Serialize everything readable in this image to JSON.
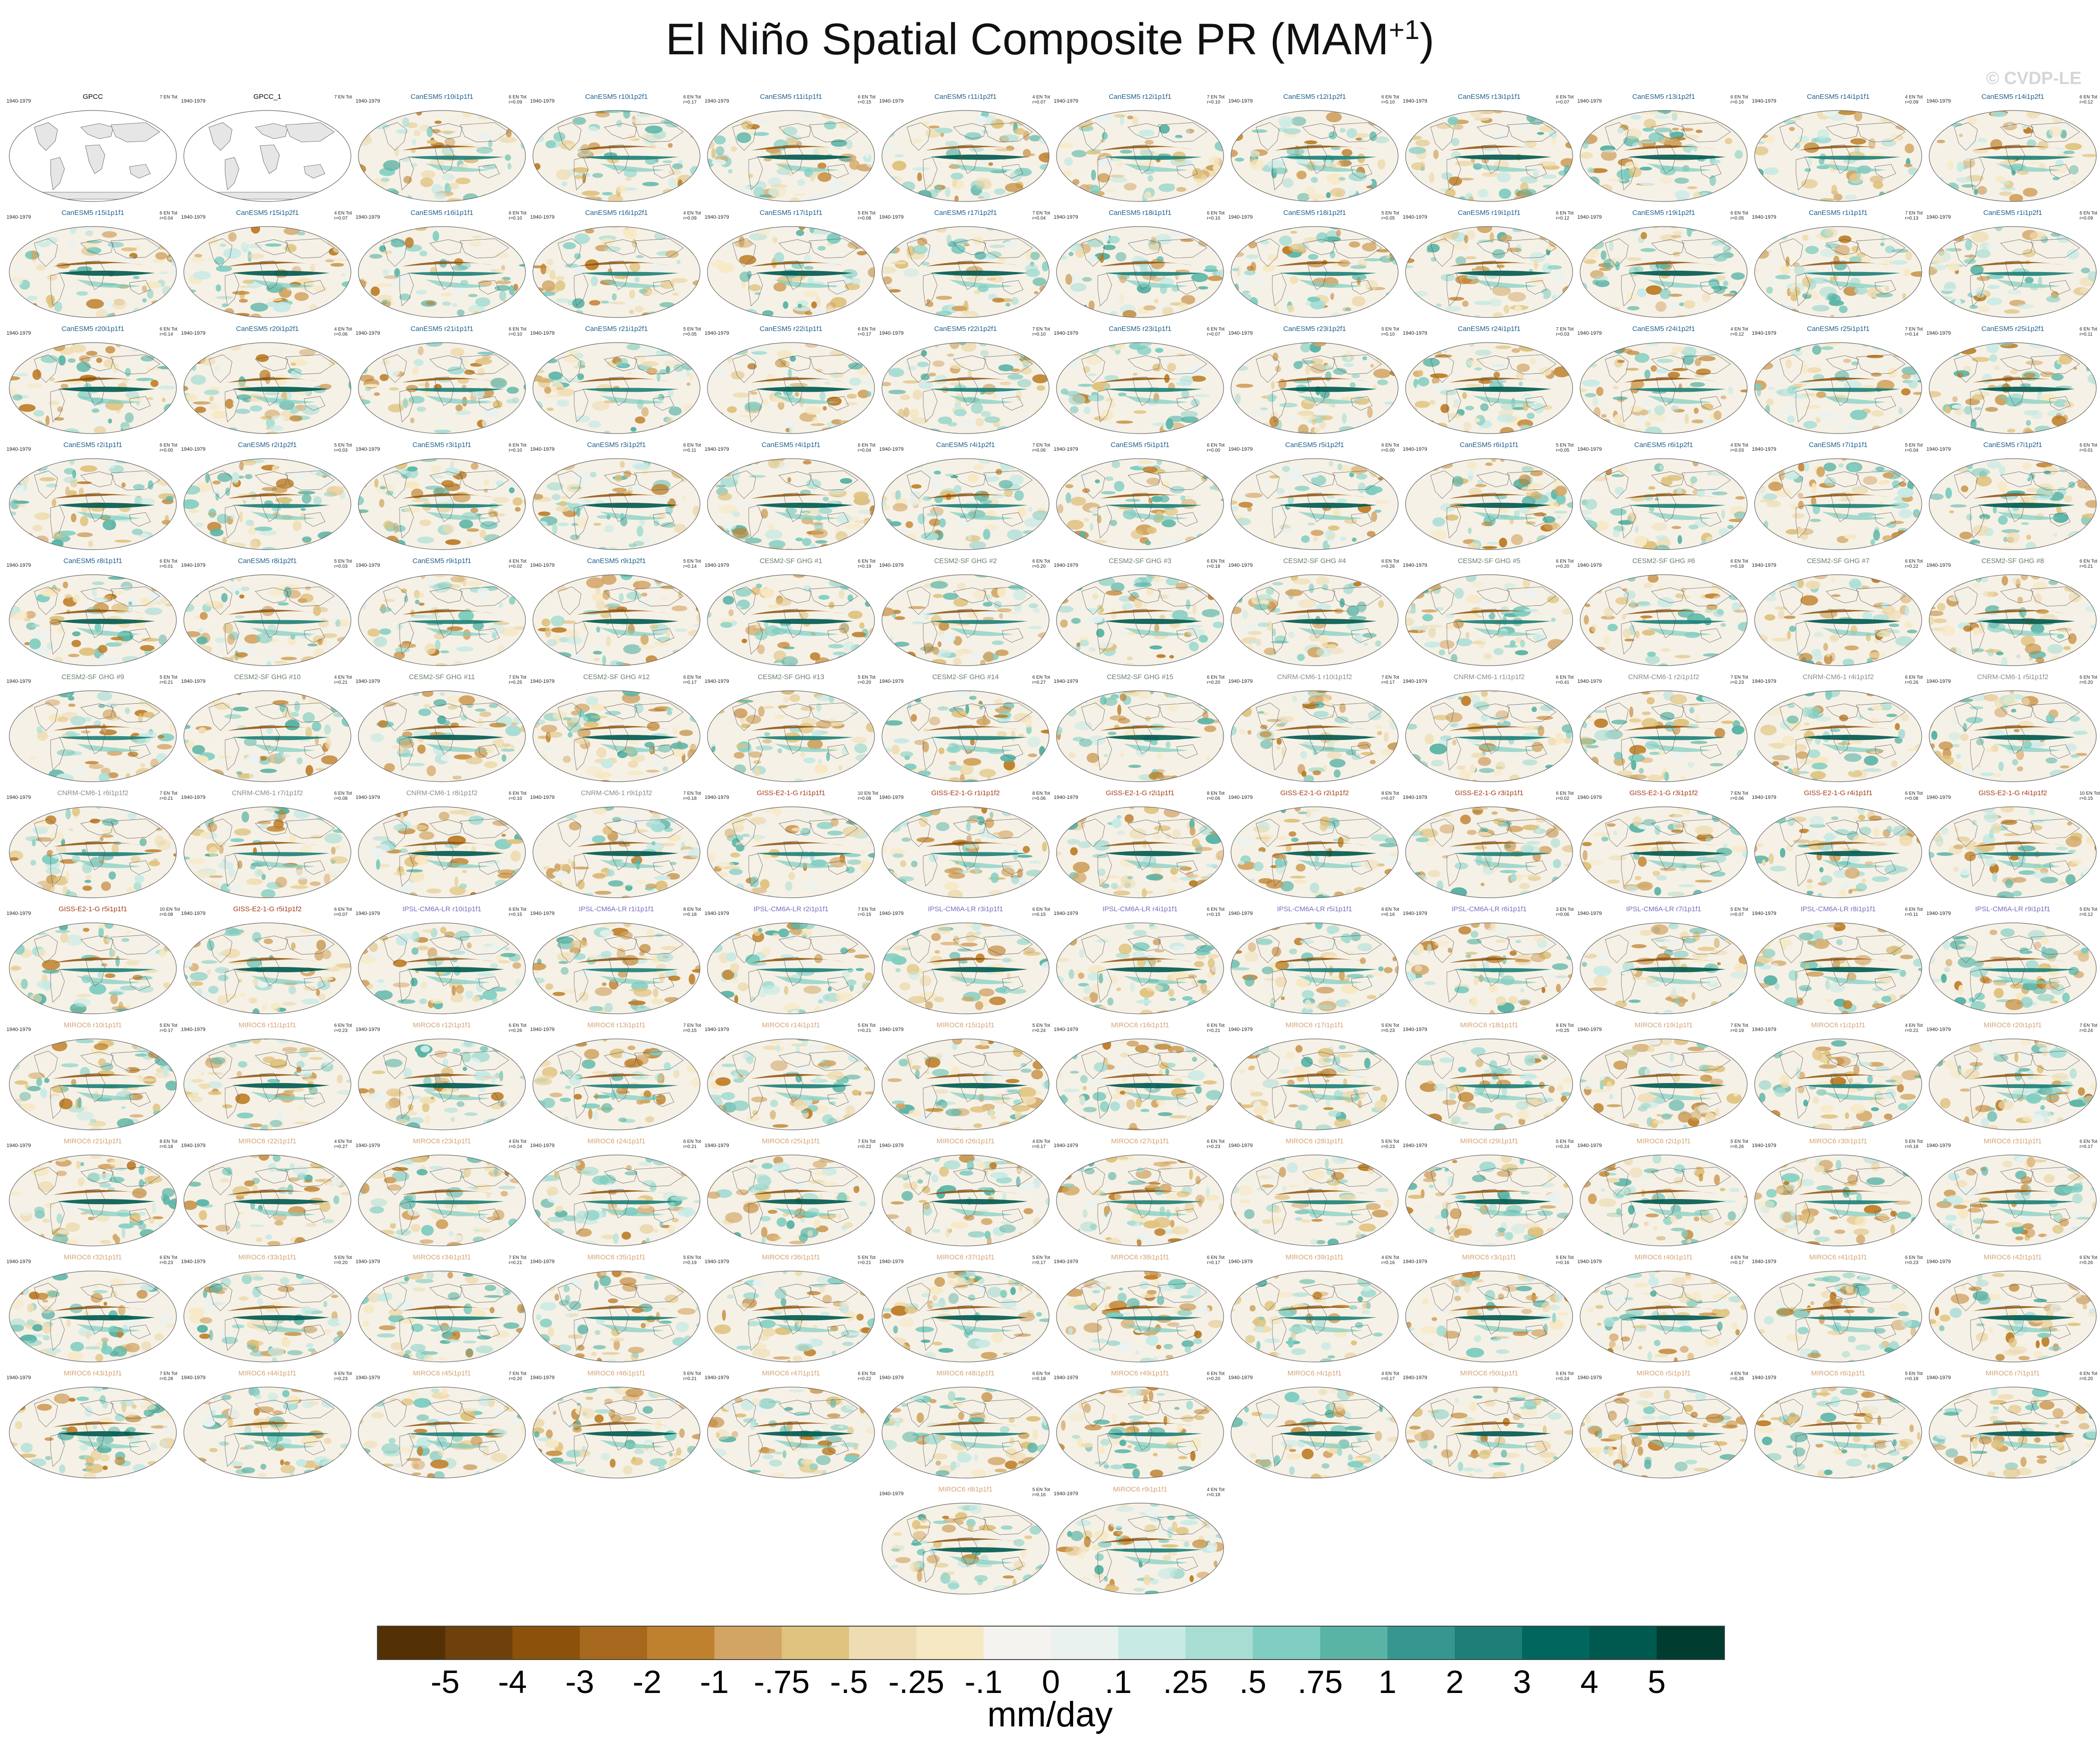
{
  "title": "El Niño Spatial Composite PR (MAM",
  "title_sup": "+1",
  "title_end": ")",
  "watermark": "© CVDP-LE",
  "period": "1940-1979",
  "stat_prefix": "# EN",
  "colors": {
    "land_obs": "#e6e6e6",
    "ocean_obs": "#ffffff",
    "canesm5": "#1f5f8b",
    "cesm2": "#6a7f6a",
    "cnrm": "#8c8c8c",
    "giss": "#a33a1a",
    "ipsl": "#7b6bbf",
    "miroc6": "#d4a373",
    "obs": "#000000"
  },
  "panels": [
    {
      "t": "GPCC",
      "v": "7 EN Tot",
      "obs": true
    },
    {
      "t": "GPCC_1",
      "v": "7 EN Tot",
      "obs": true
    },
    {
      "t": "CanESM5 r10i1p1f1",
      "v": "6 EN Tot\nr=0.09"
    },
    {
      "t": "CanESM5 r10i1p2f1",
      "v": "6 EN Tot\nr=0.17"
    },
    {
      "t": "CanESM5 r11i1p1f1",
      "v": "6 EN Tot\nr=0.15"
    },
    {
      "t": "CanESM5 r11i1p2f1",
      "v": "4 EN Tot\nr=0.07"
    },
    {
      "t": "CanESM5 r12i1p1f1",
      "v": "7 EN Tot\nr=0.10"
    },
    {
      "t": "CanESM5 r12i1p2f1",
      "v": "6 EN Tot\nr=0.10"
    },
    {
      "t": "CanESM5 r13i1p1f1",
      "v": "6 EN Tot\nr=0.07"
    },
    {
      "t": "CanESM5 r13i1p2f1",
      "v": "6 EN Tot\nr=0.16"
    },
    {
      "t": "CanESM5 r14i1p1f1",
      "v": "4 EN Tot\nr=0.09"
    },
    {
      "t": "CanESM5 r14i1p2f1",
      "v": "6 EN Tot\nr=0.12"
    },
    {
      "t": "CanESM5 r15i1p1f1",
      "v": "6 EN Tot\nr=0.04"
    },
    {
      "t": "CanESM5 r15i1p2f1",
      "v": "4 EN Tot\nr=0.07"
    },
    {
      "t": "CanESM5 r16i1p1f1",
      "v": "6 EN Tot\nr=0.10"
    },
    {
      "t": "CanESM5 r16i1p2f1",
      "v": "4 EN Tot\nr=0.09"
    },
    {
      "t": "CanESM5 r17i1p1f1",
      "v": "5 EN Tot\nr=0.08"
    },
    {
      "t": "CanESM5 r17i1p2f1",
      "v": "7 EN Tot\nr=0.04"
    },
    {
      "t": "CanESM5 r18i1p1f1",
      "v": "6 EN Tot\nr=0.10"
    },
    {
      "t": "CanESM5 r18i1p2f1",
      "v": "5 EN Tot\nr=0.05"
    },
    {
      "t": "CanESM5 r19i1p1f1",
      "v": "6 EN Tot\nr=0.12"
    },
    {
      "t": "CanESM5 r19i1p2f1",
      "v": "6 EN Tot\nr=0.05"
    },
    {
      "t": "CanESM5 r1i1p1f1",
      "v": "7 EN Tot\nr=0.13"
    },
    {
      "t": "CanESM5 r1i1p2f1",
      "v": "6 EN Tot\nr=0.09"
    },
    {
      "t": "CanESM5 r20i1p1f1",
      "v": "6 EN Tot\nr=0.14"
    },
    {
      "t": "CanESM5 r20i1p2f1",
      "v": "4 EN Tot\nr=0.06"
    },
    {
      "t": "CanESM5 r21i1p1f1",
      "v": "6 EN Tot\nr=0.10"
    },
    {
      "t": "CanESM5 r21i1p2f1",
      "v": "5 EN Tot\nr=0.05"
    },
    {
      "t": "CanESM5 r22i1p1f1",
      "v": "6 EN Tot\nr=0.17"
    },
    {
      "t": "CanESM5 r22i1p2f1",
      "v": "7 EN Tot\nr=0.10"
    },
    {
      "t": "CanESM5 r23i1p1f1",
      "v": "6 EN Tot\nr=0.07"
    },
    {
      "t": "CanESM5 r23i1p2f1",
      "v": "5 EN Tot\nr=0.10"
    },
    {
      "t": "CanESM5 r24i1p1f1",
      "v": "7 EN Tot\nr=0.03"
    },
    {
      "t": "CanESM5 r24i1p2f1",
      "v": "4 EN Tot\nr=0.12"
    },
    {
      "t": "CanESM5 r25i1p1f1",
      "v": "7 EN Tot\nr=0.14"
    },
    {
      "t": "CanESM5 r25i1p2f1",
      "v": "6 EN Tot\nr=0.11"
    },
    {
      "t": "CanESM5 r2i1p1f1",
      "v": "6 EN Tot\nr=0.00"
    },
    {
      "t": "CanESM5 r2i1p2f1",
      "v": "5 EN Tot\nr=0.03"
    },
    {
      "t": "CanESM5 r3i1p1f1",
      "v": "6 EN Tot\nr=0.10"
    },
    {
      "t": "CanESM5 r3i1p2f1",
      "v": "6 EN Tot\nr=0.11"
    },
    {
      "t": "CanESM5 r4i1p1f1",
      "v": "6 EN Tot\nr=0.04"
    },
    {
      "t": "CanESM5 r4i1p2f1",
      "v": "7 EN Tot\nr=0.06"
    },
    {
      "t": "CanESM5 r5i1p1f1",
      "v": "6 EN Tot\nr=0.00"
    },
    {
      "t": "CanESM5 r5i1p2f1",
      "v": "6 EN Tot\nr=0.00"
    },
    {
      "t": "CanESM5 r6i1p1f1",
      "v": "5 EN Tot\nr=0.05"
    },
    {
      "t": "CanESM5 r6i1p2f1",
      "v": "4 EN Tot\nr=0.03"
    },
    {
      "t": "CanESM5 r7i1p1f1",
      "v": "5 EN Tot\nr=0.04"
    },
    {
      "t": "CanESM5 r7i1p2f1",
      "v": "6 EN Tot\nr=0.01"
    },
    {
      "t": "CanESM5 r8i1p1f1",
      "v": "6 EN Tot\nr=0.01"
    },
    {
      "t": "CanESM5 r8i1p2f1",
      "v": "5 EN Tot\nr=0.03"
    },
    {
      "t": "CanESM5 r9i1p1f1",
      "v": "4 EN Tot\nr=0.02"
    },
    {
      "t": "CanESM5 r9i1p2f1",
      "v": "5 EN Tot\nr=0.14"
    },
    {
      "t": "CESM2-SF GHG #1",
      "v": "6 EN Tot\nr=0.19"
    },
    {
      "t": "CESM2-SF GHG #2",
      "v": "6 EN Tot\nr=0.20"
    },
    {
      "t": "CESM2-SF GHG #3",
      "v": "6 EN Tot\nr=0.18"
    },
    {
      "t": "CESM2-SF GHG #4",
      "v": "6 EN Tot\nr=0.26"
    },
    {
      "t": "CESM2-SF GHG #5",
      "v": "6 EN Tot\nr=0.20"
    },
    {
      "t": "CESM2-SF GHG #6",
      "v": "6 EN Tot\nr=0.18"
    },
    {
      "t": "CESM2-SF GHG #7",
      "v": "6 EN Tot\nr=0.22"
    },
    {
      "t": "CESM2-SF GHG #8",
      "v": "6 EN Tot\nr=0.21"
    },
    {
      "t": "CESM2-SF GHG #9",
      "v": "5 EN Tot\nr=0.21"
    },
    {
      "t": "CESM2-SF GHG #10",
      "v": "4 EN Tot\nr=0.21"
    },
    {
      "t": "CESM2-SF GHG #11",
      "v": "7 EN Tot\nr=0.25"
    },
    {
      "t": "CESM2-SF GHG #12",
      "v": "6 EN Tot\nr=0.17"
    },
    {
      "t": "CESM2-SF GHG #13",
      "v": "5 EN Tot\nr=0.20"
    },
    {
      "t": "CESM2-SF GHG #14",
      "v": "6 EN Tot\nr=0.27"
    },
    {
      "t": "CESM2-SF GHG #15",
      "v": "6 EN Tot\nr=0.20"
    },
    {
      "t": "CNRM-CM6-1 r10i1p1f2",
      "v": "7 EN Tot\nr=0.17"
    },
    {
      "t": "CNRM-CM6-1 r1i1p1f2",
      "v": "6 EN Tot\nr=0.41"
    },
    {
      "t": "CNRM-CM6-1 r2i1p1f2",
      "v": "7 EN Tot\nr=0.23"
    },
    {
      "t": "CNRM-CM6-1 r4i1p1f2",
      "v": "6 EN Tot\nr=0.26"
    },
    {
      "t": "CNRM-CM6-1 r5i1p1f2",
      "v": "6 EN Tot\nr=0.20"
    },
    {
      "t": "CNRM-CM6-1 r6i1p1f2",
      "v": "7 EN Tot\nr=0.21"
    },
    {
      "t": "CNRM-CM6-1 r7i1p1f2",
      "v": "6 EN Tot\nr=0.08"
    },
    {
      "t": "CNRM-CM6-1 r8i1p1f2",
      "v": "6 EN Tot\nr=0.10"
    },
    {
      "t": "CNRM-CM6-1 r9i1p1f2",
      "v": "7 EN Tot\nr=0.18"
    },
    {
      "t": "GISS-E2-1-G r1i1p1f1",
      "v": "10 EN Tot\nr=0.08"
    },
    {
      "t": "GISS-E2-1-G r1i1p1f2",
      "v": "8 EN Tot\nr=0.06"
    },
    {
      "t": "GISS-E2-1-G r2i1p1f1",
      "v": "8 EN Tot\nr=0.06"
    },
    {
      "t": "GISS-E2-1-G r2i1p1f2",
      "v": "8 EN Tot\nr=0.07"
    },
    {
      "t": "GISS-E2-1-G r3i1p1f1",
      "v": "6 EN Tot\nr=0.02"
    },
    {
      "t": "GISS-E2-1-G r3i1p1f2",
      "v": "7 EN Tot\nr=0.06"
    },
    {
      "t": "GISS-E2-1-G r4i1p1f1",
      "v": "6 EN Tot\nr=0.08"
    },
    {
      "t": "GISS-E2-1-G r4i1p1f2",
      "v": "10 EN Tot\nr=0.15"
    },
    {
      "t": "GISS-E2-1-G r5i1p1f1",
      "v": "10 EN Tot\nr=0.08"
    },
    {
      "t": "GISS-E2-1-G r5i1p1f2",
      "v": "6 EN Tot\nr=0.07"
    },
    {
      "t": "IPSL-CM6A-LR r10i1p1f1",
      "v": "6 EN Tot\nr=0.15"
    },
    {
      "t": "IPSL-CM6A-LR r1i1p1f1",
      "v": "8 EN Tot\nr=0.18"
    },
    {
      "t": "IPSL-CM6A-LR r2i1p1f1",
      "v": "7 EN Tot\nr=0.15"
    },
    {
      "t": "IPSL-CM6A-LR r3i1p1f1",
      "v": "6 EN Tot\nr=0.15"
    },
    {
      "t": "IPSL-CM6A-LR r4i1p1f1",
      "v": "6 EN Tot\nr=0.15"
    },
    {
      "t": "IPSL-CM6A-LR r5i1p1f1",
      "v": "6 EN Tot\nr=0.16"
    },
    {
      "t": "IPSL-CM6A-LR r6i1p1f1",
      "v": "3 EN Tot\nr=0.06"
    },
    {
      "t": "IPSL-CM6A-LR r7i1p1f1",
      "v": "5 EN Tot\nr=0.07"
    },
    {
      "t": "IPSL-CM6A-LR r8i1p1f1",
      "v": "6 EN Tot\nr=0.11"
    },
    {
      "t": "IPSL-CM6A-LR r9i1p1f1",
      "v": "5 EN Tot\nr=0.12"
    },
    {
      "t": "MIROC6 r10i1p1f1",
      "v": "5 EN Tot\nr=0.17"
    },
    {
      "t": "MIROC6 r11i1p1f1",
      "v": "6 EN Tot\nr=0.23"
    },
    {
      "t": "MIROC6 r12i1p1f1",
      "v": "6 EN Tot\nr=0.26"
    },
    {
      "t": "MIROC6 r13i1p1f1",
      "v": "7 EN Tot\nr=0.15"
    },
    {
      "t": "MIROC6 r14i1p1f1",
      "v": "5 EN Tot\nr=0.21"
    },
    {
      "t": "MIROC6 r15i1p1f1",
      "v": "5 EN Tot\nr=0.24"
    },
    {
      "t": "MIROC6 r16i1p1f1",
      "v": "6 EN Tot\nr=0.21"
    },
    {
      "t": "MIROC6 r17i1p1f1",
      "v": "5 EN Tot\nr=0.23"
    },
    {
      "t": "MIROC6 r18i1p1f1",
      "v": "8 EN Tot\nr=0.25"
    },
    {
      "t": "MIROC6 r19i1p1f1",
      "v": "7 EN Tot\nr=0.19"
    },
    {
      "t": "MIROC6 r1i1p1f1",
      "v": "4 EN Tot\nr=0.21"
    },
    {
      "t": "MIROC6 r20i1p1f1",
      "v": "7 EN Tot\nr=0.24"
    },
    {
      "t": "MIROC6 r21i1p1f1",
      "v": "8 EN Tot\nr=0.18"
    },
    {
      "t": "MIROC6 r22i1p1f1",
      "v": "4 EN Tot\nr=0.27"
    },
    {
      "t": "MIROC6 r23i1p1f1",
      "v": "4 EN Tot\nr=0.24"
    },
    {
      "t": "MIROC6 r24i1p1f1",
      "v": "6 EN Tot\nr=0.21"
    },
    {
      "t": "MIROC6 r25i1p1f1",
      "v": "7 EN Tot\nr=0.22"
    },
    {
      "t": "MIROC6 r26i1p1f1",
      "v": "4 EN Tot\nr=0.17"
    },
    {
      "t": "MIROC6 r27i1p1f1",
      "v": "6 EN Tot\nr=0.23"
    },
    {
      "t": "MIROC6 r28i1p1f1",
      "v": "5 EN Tot\nr=0.23"
    },
    {
      "t": "MIROC6 r29i1p1f1",
      "v": "5 EN Tot\nr=0.24"
    },
    {
      "t": "MIROC6 r2i1p1f1",
      "v": "5 EN Tot\nr=0.26"
    },
    {
      "t": "MIROC6 r30i1p1f1",
      "v": "5 EN Tot\nr=0.18"
    },
    {
      "t": "MIROC6 r31i1p1f1",
      "v": "6 EN Tot\nr=0.17"
    },
    {
      "t": "MIROC6 r32i1p1f1",
      "v": "6 EN Tot\nr=0.23"
    },
    {
      "t": "MIROC6 r33i1p1f1",
      "v": "5 EN Tot\nr=0.20"
    },
    {
      "t": "MIROC6 r34i1p1f1",
      "v": "7 EN Tot\nr=0.21"
    },
    {
      "t": "MIROC6 r35i1p1f1",
      "v": "5 EN Tot\nr=0.19"
    },
    {
      "t": "MIROC6 r36i1p1f1",
      "v": "5 EN Tot\nr=0.21"
    },
    {
      "t": "MIROC6 r37i1p1f1",
      "v": "5 EN Tot\nr=0.17"
    },
    {
      "t": "MIROC6 r38i1p1f1",
      "v": "6 EN Tot\nr=0.17"
    },
    {
      "t": "MIROC6 r39i1p1f1",
      "v": "4 EN Tot\nr=0.16"
    },
    {
      "t": "MIROC6 r3i1p1f1",
      "v": "5 EN Tot\nr=0.16"
    },
    {
      "t": "MIROC6 r40i1p1f1",
      "v": "4 EN Tot\nr=0.17"
    },
    {
      "t": "MIROC6 r41i1p1f1",
      "v": "6 EN Tot\nr=0.23"
    },
    {
      "t": "MIROC6 r42i1p1f1",
      "v": "6 EN Tot\nr=0.26"
    },
    {
      "t": "MIROC6 r43i1p1f1",
      "v": "7 EN Tot\nr=0.28"
    },
    {
      "t": "MIROC6 r44i1p1f1",
      "v": "6 EN Tot\nr=0.23"
    },
    {
      "t": "MIROC6 r45i1p1f1",
      "v": "7 EN Tot\nr=0.20"
    },
    {
      "t": "MIROC6 r46i1p1f1",
      "v": "5 EN Tot\nr=0.21"
    },
    {
      "t": "MIROC6 r47i1p1f1",
      "v": "6 EN Tot\nr=0.22"
    },
    {
      "t": "MIROC6 r48i1p1f1",
      "v": "6 EN Tot\nr=0.18"
    },
    {
      "t": "MIROC6 r49i1p1f1",
      "v": "6 EN Tot\nr=0.20"
    },
    {
      "t": "MIROC6 r4i1p1f1",
      "v": "4 EN Tot\nr=0.17"
    },
    {
      "t": "MIROC6 r50i1p1f1",
      "v": "5 EN Tot\nr=0.24"
    },
    {
      "t": "MIROC6 r5i1p1f1",
      "v": "4 EN Tot\nr=0.26"
    },
    {
      "t": "MIROC6 r6i1p1f1",
      "v": "5 EN Tot\nr=0.18"
    },
    {
      "t": "MIROC6 r7i1p1f1",
      "v": "6 EN Tot\nr=0.20"
    },
    {
      "t": "MIROC6 r8i1p1f1",
      "v": "5 EN Tot\nr=0.16"
    },
    {
      "t": "MIROC6 r9i1p1f1",
      "v": "4 EN Tot\nr=0.18"
    }
  ],
  "colorbar": {
    "colors": [
      "#543005",
      "#6e400b",
      "#8c510a",
      "#a6681c",
      "#bf812d",
      "#d2a564",
      "#dfc27d",
      "#eedcb2",
      "#f6e8c3",
      "#f5f3ef",
      "#eaf2f0",
      "#c7eae5",
      "#a8ddd4",
      "#80cdc1",
      "#5ab4a6",
      "#35978f",
      "#1d7f77",
      "#01665e",
      "#00594f",
      "#003c30"
    ],
    "labels": [
      "-5",
      "-4",
      "-3",
      "-2",
      "-1",
      "-.75",
      "-.5",
      "-.25",
      "-.1",
      "0",
      ".1",
      ".25",
      ".5",
      ".75",
      "1",
      "2",
      "3",
      "4",
      "5"
    ],
    "units": "mm/day"
  }
}
